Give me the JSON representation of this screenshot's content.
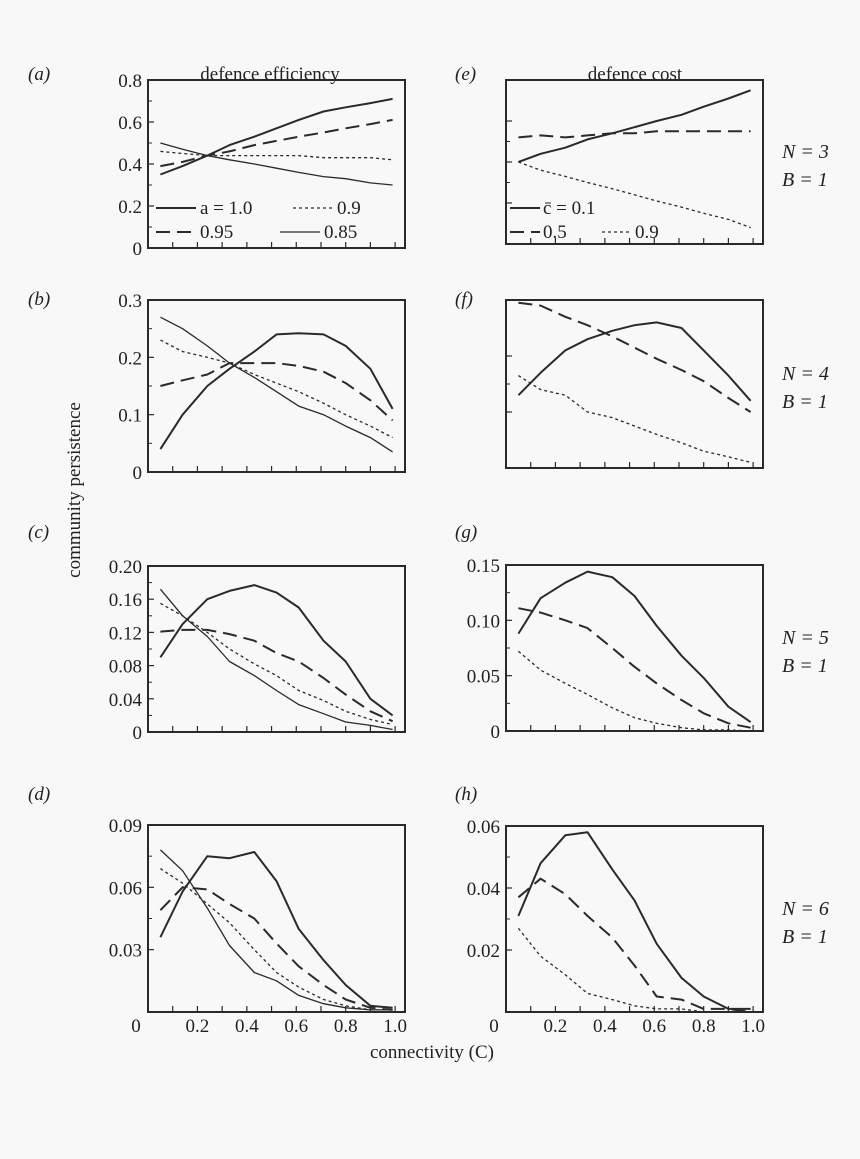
{
  "column_titles": [
    "defence efficiency",
    "defence cost"
  ],
  "ylabel": "community persistence",
  "xlabel": "connectivity (C)",
  "colors": {
    "line": "#2a2a2a",
    "background": "#f8f8f8"
  },
  "chart_data": [
    {
      "panel": "(a)",
      "type": "line",
      "column": "defence efficiency",
      "ylim": [
        0,
        0.8
      ],
      "yticks": [
        "0",
        "0.2",
        "0.4",
        "0.6",
        "0.8"
      ],
      "ytick_values": [
        0,
        0.2,
        0.4,
        0.6,
        0.8
      ],
      "xlim": [
        0,
        1.04
      ],
      "xticks": [],
      "legend": [
        "a = 1.0",
        "0.9",
        "0.95",
        "0.85"
      ],
      "x": [
        0.05,
        0.14,
        0.24,
        0.33,
        0.43,
        0.52,
        0.61,
        0.71,
        0.8,
        0.9,
        0.99
      ],
      "series": [
        {
          "name": "a = 1.0",
          "style": "solid-thick",
          "values": [
            0.35,
            0.39,
            0.44,
            0.49,
            0.53,
            0.57,
            0.61,
            0.65,
            0.67,
            0.69,
            0.71
          ]
        },
        {
          "name": "0.95",
          "style": "dashed",
          "values": [
            0.39,
            0.41,
            0.44,
            0.46,
            0.49,
            0.51,
            0.53,
            0.55,
            0.57,
            0.59,
            0.61
          ]
        },
        {
          "name": "0.9",
          "style": "dotted",
          "values": [
            0.46,
            0.45,
            0.44,
            0.44,
            0.44,
            0.44,
            0.44,
            0.43,
            0.43,
            0.43,
            0.42
          ]
        },
        {
          "name": "0.85",
          "style": "solid-thin",
          "values": [
            0.5,
            0.47,
            0.44,
            0.42,
            0.4,
            0.38,
            0.36,
            0.34,
            0.33,
            0.31,
            0.3
          ]
        }
      ]
    },
    {
      "panel": "(b)",
      "type": "line",
      "column": "defence efficiency",
      "ylim": [
        0,
        0.3
      ],
      "yticks": [
        "0",
        "0.1",
        "0.2",
        "0.3"
      ],
      "ytick_values": [
        0,
        0.1,
        0.2,
        0.3
      ],
      "xlim": [
        0,
        1.04
      ],
      "xticks": [],
      "x": [
        0.05,
        0.14,
        0.24,
        0.33,
        0.43,
        0.52,
        0.61,
        0.71,
        0.8,
        0.9,
        0.99
      ],
      "series": [
        {
          "style": "solid-thick",
          "values": [
            0.04,
            0.1,
            0.15,
            0.18,
            0.21,
            0.24,
            0.242,
            0.24,
            0.22,
            0.18,
            0.11
          ]
        },
        {
          "style": "dashed",
          "values": [
            0.15,
            0.16,
            0.17,
            0.19,
            0.19,
            0.19,
            0.185,
            0.175,
            0.155,
            0.125,
            0.09
          ]
        },
        {
          "style": "dotted",
          "values": [
            0.23,
            0.21,
            0.2,
            0.19,
            0.17,
            0.155,
            0.14,
            0.12,
            0.1,
            0.08,
            0.06
          ]
        },
        {
          "style": "solid-thin",
          "values": [
            0.27,
            0.25,
            0.22,
            0.19,
            0.165,
            0.14,
            0.115,
            0.1,
            0.08,
            0.06,
            0.035
          ]
        }
      ]
    },
    {
      "panel": "(c)",
      "type": "line",
      "column": "defence efficiency",
      "ylim": [
        0,
        0.2
      ],
      "yticks": [
        "0",
        "0.04",
        "0.08",
        "0.12",
        "0.16",
        "0.20"
      ],
      "ytick_values": [
        0,
        0.04,
        0.08,
        0.12,
        0.16,
        0.2
      ],
      "xlim": [
        0,
        1.04
      ],
      "xticks": [],
      "x": [
        0.05,
        0.14,
        0.24,
        0.33,
        0.43,
        0.52,
        0.61,
        0.71,
        0.8,
        0.9,
        0.99
      ],
      "series": [
        {
          "style": "solid-thick",
          "values": [
            0.09,
            0.13,
            0.16,
            0.17,
            0.177,
            0.168,
            0.15,
            0.11,
            0.085,
            0.04,
            0.02
          ]
        },
        {
          "style": "dashed",
          "values": [
            0.121,
            0.123,
            0.123,
            0.118,
            0.11,
            0.095,
            0.085,
            0.065,
            0.045,
            0.025,
            0.013
          ]
        },
        {
          "style": "dotted",
          "values": [
            0.155,
            0.14,
            0.12,
            0.1,
            0.082,
            0.068,
            0.05,
            0.038,
            0.025,
            0.015,
            0.009
          ]
        },
        {
          "style": "solid-thin",
          "values": [
            0.172,
            0.14,
            0.115,
            0.085,
            0.068,
            0.05,
            0.033,
            0.022,
            0.012,
            0.008,
            0.003
          ]
        }
      ]
    },
    {
      "panel": "(d)",
      "type": "line",
      "column": "defence efficiency",
      "ylim": [
        0,
        0.09
      ],
      "yticks": [
        "0.03",
        "0.06",
        "0.09"
      ],
      "ytick_values": [
        0.03,
        0.06,
        0.09
      ],
      "xlim": [
        0,
        1.04
      ],
      "xticks": [
        "0",
        "0.2",
        "0.4",
        "0.6",
        "0.8",
        "1.0"
      ],
      "xtick_values": [
        0,
        0.2,
        0.4,
        0.6,
        0.8,
        1.0
      ],
      "x": [
        0.05,
        0.14,
        0.24,
        0.33,
        0.43,
        0.52,
        0.61,
        0.71,
        0.8,
        0.9,
        0.99
      ],
      "series": [
        {
          "style": "solid-thick",
          "values": [
            0.036,
            0.058,
            0.075,
            0.074,
            0.077,
            0.063,
            0.04,
            0.025,
            0.013,
            0.003,
            0.002
          ]
        },
        {
          "style": "dashed",
          "values": [
            0.049,
            0.06,
            0.059,
            0.052,
            0.045,
            0.033,
            0.022,
            0.013,
            0.006,
            0.002,
            0.001
          ]
        },
        {
          "style": "dotted",
          "values": [
            0.069,
            0.062,
            0.052,
            0.043,
            0.03,
            0.019,
            0.012,
            0.006,
            0.003,
            0.001,
            0.001
          ]
        },
        {
          "style": "solid-thin",
          "values": [
            0.078,
            0.068,
            0.05,
            0.032,
            0.019,
            0.015,
            0.008,
            0.004,
            0.002,
            0.001,
            0.001
          ]
        }
      ]
    },
    {
      "panel": "(e)",
      "type": "line",
      "column": "defence cost",
      "ylim": [
        0,
        0.8
      ],
      "yticks": [],
      "ytick_values": [
        0.2,
        0.4,
        0.6
      ],
      "xlim": [
        0,
        1.04
      ],
      "xticks": [],
      "legend": [
        "c̄ = 0.1",
        "0.5",
        "0.9"
      ],
      "annotation": [
        "N = 3",
        "B = 1"
      ],
      "x": [
        0.05,
        0.14,
        0.24,
        0.33,
        0.43,
        0.52,
        0.61,
        0.71,
        0.8,
        0.9,
        0.99
      ],
      "series": [
        {
          "name": "c̄ = 0.1",
          "style": "solid-thick",
          "values": [
            0.4,
            0.44,
            0.47,
            0.51,
            0.54,
            0.57,
            0.6,
            0.63,
            0.67,
            0.71,
            0.75
          ]
        },
        {
          "name": "0.5",
          "style": "dashed",
          "values": [
            0.52,
            0.53,
            0.52,
            0.53,
            0.54,
            0.54,
            0.55,
            0.55,
            0.55,
            0.55,
            0.55
          ]
        },
        {
          "name": "0.9",
          "style": "dotted",
          "values": [
            0.4,
            0.36,
            0.33,
            0.3,
            0.27,
            0.24,
            0.21,
            0.18,
            0.15,
            0.12,
            0.08
          ]
        }
      ]
    },
    {
      "panel": "(f)",
      "type": "line",
      "column": "defence cost",
      "ylim": [
        0,
        0.3
      ],
      "yticks": [],
      "ytick_values": [
        0.1,
        0.2
      ],
      "xlim": [
        0,
        1.04
      ],
      "xticks": [],
      "annotation": [
        "N = 4",
        "B = 1"
      ],
      "x": [
        0.05,
        0.14,
        0.24,
        0.33,
        0.43,
        0.52,
        0.61,
        0.71,
        0.8,
        0.9,
        0.99
      ],
      "series": [
        {
          "style": "solid-thick",
          "values": [
            0.13,
            0.17,
            0.21,
            0.23,
            0.245,
            0.255,
            0.26,
            0.25,
            0.21,
            0.165,
            0.12
          ]
        },
        {
          "style": "dashed",
          "values": [
            0.295,
            0.29,
            0.27,
            0.255,
            0.235,
            0.215,
            0.195,
            0.175,
            0.155,
            0.125,
            0.1
          ]
        },
        {
          "style": "dotted",
          "values": [
            0.165,
            0.14,
            0.13,
            0.1,
            0.09,
            0.075,
            0.06,
            0.045,
            0.03,
            0.02,
            0.01
          ]
        }
      ]
    },
    {
      "panel": "(g)",
      "type": "line",
      "column": "defence cost",
      "ylim": [
        0,
        0.15
      ],
      "yticks": [
        "0",
        "0.05",
        "0.10",
        "0.15"
      ],
      "ytick_values": [
        0,
        0.05,
        0.1,
        0.15
      ],
      "xlim": [
        0,
        1.04
      ],
      "xticks": [],
      "annotation": [
        "N = 5",
        "B = 1"
      ],
      "x": [
        0.05,
        0.14,
        0.24,
        0.33,
        0.43,
        0.52,
        0.61,
        0.71,
        0.8,
        0.9,
        0.99
      ],
      "series": [
        {
          "style": "solid-thick",
          "values": [
            0.088,
            0.12,
            0.134,
            0.144,
            0.139,
            0.122,
            0.095,
            0.068,
            0.048,
            0.022,
            0.008
          ]
        },
        {
          "style": "dashed",
          "values": [
            0.111,
            0.107,
            0.1,
            0.093,
            0.075,
            0.058,
            0.043,
            0.028,
            0.016,
            0.007,
            0.003
          ]
        },
        {
          "style": "dotted",
          "values": [
            0.072,
            0.055,
            0.043,
            0.033,
            0.021,
            0.012,
            0.007,
            0.003,
            0.001,
            0.001,
            0.0
          ]
        }
      ]
    },
    {
      "panel": "(h)",
      "type": "line",
      "column": "defence cost",
      "ylim": [
        0,
        0.06
      ],
      "yticks": [
        "0.02",
        "0.04",
        "0.06"
      ],
      "ytick_values": [
        0.02,
        0.04,
        0.06
      ],
      "xlim": [
        0,
        1.04
      ],
      "xticks": [
        "0",
        "0.2",
        "0.4",
        "0.6",
        "0.8",
        "1.0"
      ],
      "xtick_values": [
        0,
        0.2,
        0.4,
        0.6,
        0.8,
        1.0
      ],
      "annotation": [
        "N = 6",
        "B = 1"
      ],
      "x": [
        0.05,
        0.14,
        0.24,
        0.33,
        0.43,
        0.52,
        0.61,
        0.71,
        0.8,
        0.9,
        0.99
      ],
      "series": [
        {
          "style": "solid-thick",
          "values": [
            0.031,
            0.048,
            0.057,
            0.058,
            0.046,
            0.036,
            0.022,
            0.011,
            0.005,
            0.001,
            0.001
          ]
        },
        {
          "style": "dashed",
          "values": [
            0.037,
            0.043,
            0.038,
            0.031,
            0.024,
            0.015,
            0.005,
            0.004,
            0.001,
            0.001,
            0.0
          ]
        },
        {
          "style": "dotted",
          "values": [
            0.027,
            0.018,
            0.012,
            0.006,
            0.004,
            0.002,
            0.001,
            0.001,
            0.0,
            0.0,
            0.0
          ]
        }
      ]
    }
  ]
}
